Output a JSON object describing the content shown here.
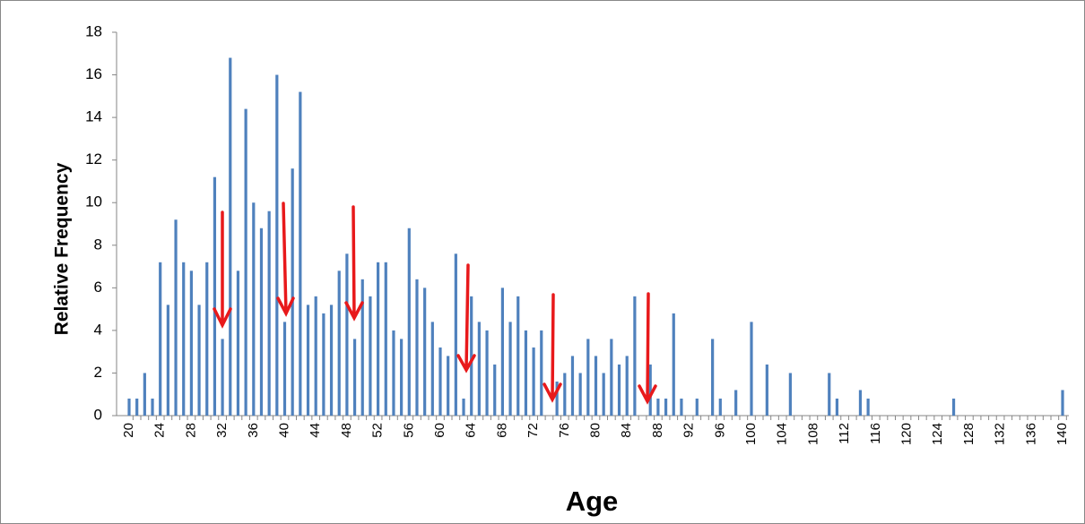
{
  "chart_data": {
    "type": "bar",
    "x_label": "Age",
    "y_label": "Relative Frequency",
    "color": "#4f81bd",
    "grid": false,
    "categories": [
      20,
      null,
      null,
      null,
      24,
      null,
      null,
      null,
      28,
      null,
      null,
      null,
      32,
      null,
      null,
      null,
      36,
      null,
      null,
      null,
      40,
      null,
      null,
      null,
      44,
      null,
      null,
      null,
      48,
      null,
      null,
      null,
      52,
      null,
      null,
      null,
      56,
      null,
      null,
      null,
      60,
      null,
      null,
      null,
      64,
      null,
      null,
      null,
      68,
      null,
      null,
      null,
      72,
      null,
      null,
      null,
      76,
      null,
      null,
      null,
      80,
      null,
      null,
      null,
      84,
      null,
      null,
      null,
      88,
      null,
      null,
      null,
      92,
      null,
      null,
      null,
      96,
      null,
      null,
      null,
      100,
      null,
      null,
      null,
      104,
      null,
      null,
      null,
      108,
      null,
      null,
      null,
      112,
      null,
      null,
      null,
      116,
      null,
      null,
      null,
      120,
      null,
      null,
      null,
      124,
      null,
      null,
      null,
      128,
      null,
      null,
      null,
      132,
      null,
      null,
      null,
      136,
      null,
      null,
      null,
      140
    ],
    "values": [
      0.8,
      0.8,
      2,
      0.8,
      7.2,
      5.2,
      9.2,
      7.2,
      6.8,
      5.2,
      7.2,
      11.2,
      3.6,
      16.8,
      6.8,
      14.4,
      10,
      8.8,
      9.6,
      16,
      4.4,
      11.6,
      15.2,
      5.2,
      5.6,
      4.8,
      5.2,
      6.8,
      7.6,
      3.6,
      6.4,
      5.6,
      7.2,
      7.2,
      4,
      3.6,
      8.8,
      6.4,
      6,
      4.4,
      3.2,
      2.8,
      7.6,
      0.8,
      5.6,
      4.4,
      4,
      2.4,
      6,
      4.4,
      5.6,
      4,
      3.2,
      4,
      0,
      1.6,
      2,
      2.8,
      2,
      3.6,
      2.8,
      2,
      3.6,
      2.4,
      2.8,
      5.6,
      0,
      2.4,
      0.8,
      0.8,
      4.8,
      0.8,
      0,
      0.8,
      0,
      3.6,
      0.8,
      0,
      1.2,
      0,
      4.4,
      0,
      2.4,
      0,
      0,
      2,
      0,
      0,
      0,
      0,
      2,
      0.8,
      0,
      0,
      1.2,
      0.8,
      0,
      0,
      0,
      0,
      0,
      0,
      0,
      0,
      0,
      0,
      0.8,
      0,
      0,
      0,
      0,
      0,
      0,
      0,
      0,
      0,
      0,
      0,
      0,
      0,
      1.2
    ],
    "ylim": [
      0,
      18
    ],
    "yticks": [
      0,
      2,
      4,
      6,
      8,
      10,
      12,
      14,
      16,
      18
    ]
  }
}
